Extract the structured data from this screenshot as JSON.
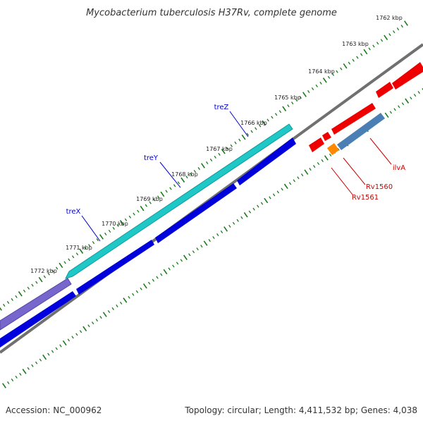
{
  "title": "Mycobacterium tuberculosis H37Rv, complete genome",
  "footer": {
    "accession": "Accession: NC_000962",
    "summary": "Topology: circular; Length: 4,411,532 bp; Genes: 4,038"
  },
  "kbp_labels": [
    "1762 kbp",
    "1763 kbp",
    "1764 kbp",
    "1765 kbp",
    "1766 kbp",
    "1767 kbp",
    "1768 kbp",
    "1769 kbp",
    "1770 kbp",
    "1771 kbp",
    "1772 kbp"
  ],
  "gene_labels": [
    {
      "id": "treZ",
      "text": "treZ",
      "color": "#0000cc"
    },
    {
      "id": "treY",
      "text": "treY",
      "color": "#0000cc"
    },
    {
      "id": "treX",
      "text": "treX",
      "color": "#0000cc"
    },
    {
      "id": "ilvA",
      "text": "ilvA",
      "color": "#cc0000"
    },
    {
      "id": "Rv1560",
      "text": "Rv1560",
      "color": "#cc0000"
    },
    {
      "id": "Rv1561",
      "text": "Rv1561",
      "color": "#cc0000"
    }
  ],
  "colors": {
    "backbone": "#808080",
    "tick": "#1a7a1a",
    "cyan_gene": "#1fc7c7",
    "blue_gene": "#0000dd",
    "purple_gene": "#7766cc",
    "red_gene": "#ee0000",
    "steel_gene": "#4a7fb5",
    "orange_gene": "#ff8800"
  }
}
